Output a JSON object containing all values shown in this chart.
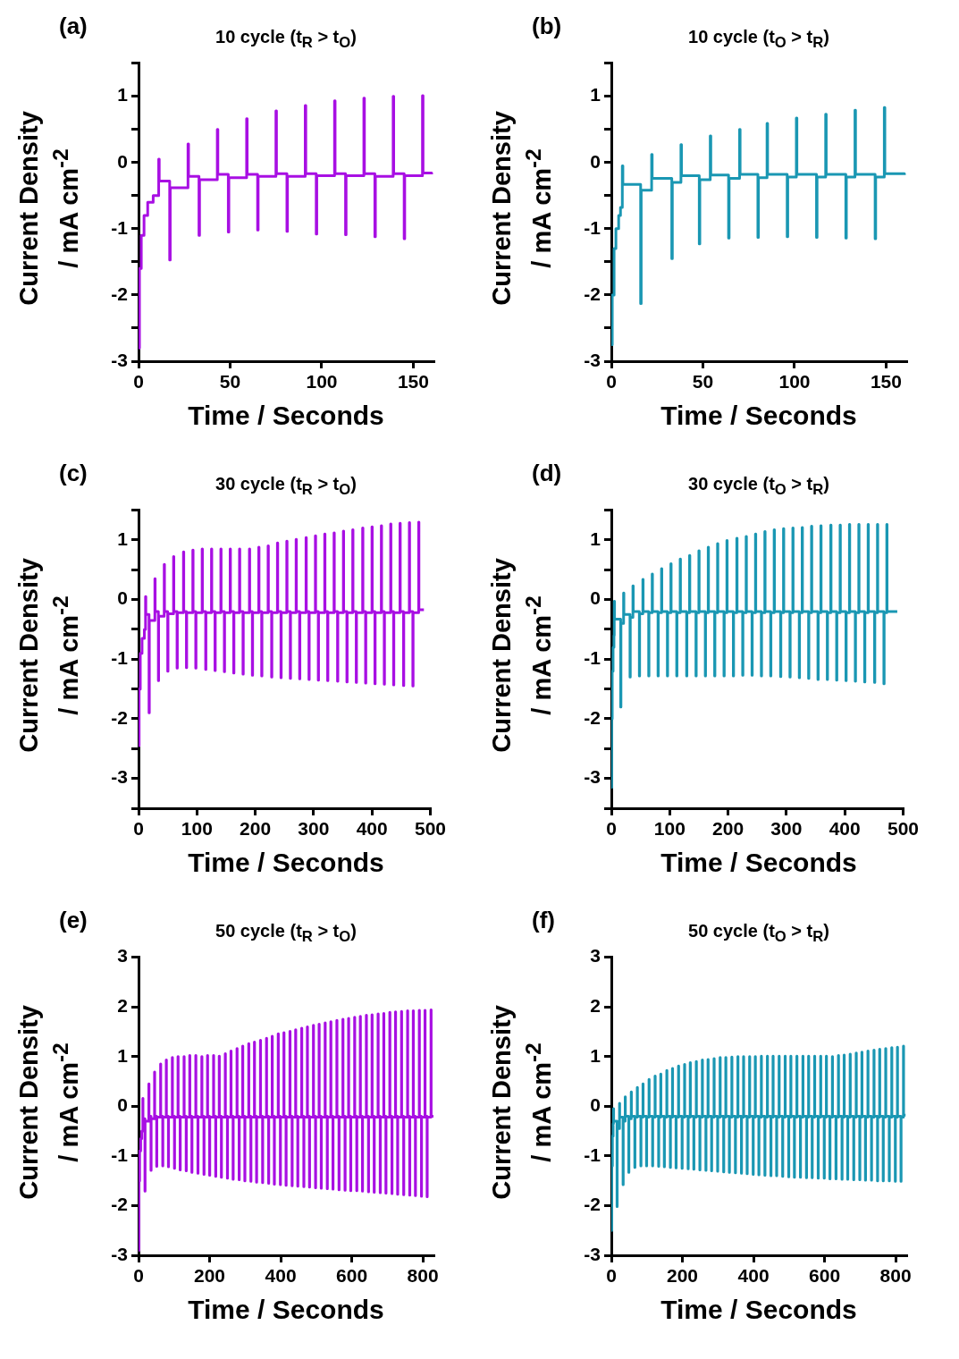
{
  "chart_data": [
    {
      "type": "step",
      "title": "10 cycle (t$_{R}$ > t$_{O}$)",
      "xlabel": "Time / Seconds",
      "ylabel": "Current Density\n/ mA cm$^{-2}$",
      "annotations": [
        "(a)"
      ],
      "color": "#a80fe3",
      "xlim": [
        0,
        161
      ],
      "xticks": [
        0,
        50,
        100,
        150
      ],
      "ylim": [
        -3,
        1.5
      ],
      "yticks": [
        -3,
        {
          "value": -2.5,
          "label": null
        },
        -2,
        {
          "value": -1.5,
          "label": null
        },
        -1,
        {
          "value": -0.5,
          "label": null
        },
        0,
        {
          "value": 0.5,
          "label": null
        },
        1,
        {
          "value": 1.5,
          "label": null
        }
      ],
      "x": [
        0,
        0.5,
        1.5,
        3,
        5,
        8,
        11,
        11.3,
        17,
        17.3,
        27,
        27.3,
        33,
        33.3,
        43,
        43.3,
        49,
        49.3,
        59,
        59.3,
        65,
        65.3,
        75,
        75.3,
        81,
        81.3,
        91,
        91.3,
        97,
        97.3,
        107,
        107.3,
        113,
        113.3,
        123,
        123.3,
        129,
        129.3,
        139,
        139.3,
        145,
        145.3,
        155,
        155.3,
        160
      ],
      "values": [
        -2.8,
        -1.6,
        -1.1,
        -0.8,
        -0.6,
        -0.5,
        0.05,
        -0.28,
        -1.47,
        -0.38,
        0.28,
        -0.21,
        -1.1,
        -0.26,
        0.5,
        -0.18,
        -1.05,
        -0.23,
        0.66,
        -0.18,
        -1.02,
        -0.21,
        0.78,
        -0.17,
        -1.04,
        -0.21,
        0.86,
        -0.17,
        -1.08,
        -0.2,
        0.93,
        -0.17,
        -1.09,
        -0.2,
        0.97,
        -0.17,
        -1.12,
        -0.21,
        1.0,
        -0.17,
        -1.15,
        -0.2,
        1.01,
        -0.16,
        -0.18
      ]
    },
    {
      "type": "step",
      "title": "10 cycle (t$_{O}$ > t$_{R}$)",
      "xlabel": "Time / Seconds",
      "ylabel": "Current Density\n/ mA cm$^{-2}$",
      "annotations": [
        "(b)"
      ],
      "color": "#1a97b3",
      "xlim": [
        0,
        161
      ],
      "xticks": [
        0,
        50,
        100,
        150
      ],
      "ylim": [
        -3,
        1.5
      ],
      "yticks": [
        -3,
        {
          "value": -2.5,
          "label": null
        },
        -2,
        {
          "value": -1.5,
          "label": null
        },
        -1,
        {
          "value": -0.5,
          "label": null
        },
        0,
        {
          "value": 0.5,
          "label": null
        },
        1,
        {
          "value": 1.5,
          "label": null
        }
      ],
      "x": [
        0,
        0.5,
        1.5,
        2.5,
        4,
        5,
        6,
        6.3,
        16,
        16.3,
        22,
        22.3,
        33,
        33.3,
        38,
        38.3,
        48,
        48.3,
        54,
        54.3,
        64,
        64.3,
        70,
        70.3,
        80,
        80.3,
        85,
        85.3,
        96,
        96.3,
        101,
        101.3,
        112,
        112.3,
        117,
        117.3,
        128,
        128.3,
        133,
        133.3,
        144,
        144.3,
        149,
        149.3,
        160
      ],
      "values": [
        -2.75,
        -2.0,
        -1.3,
        -1.0,
        -0.8,
        -0.68,
        -0.05,
        -0.33,
        -2.13,
        -0.42,
        0.12,
        -0.24,
        -1.45,
        -0.3,
        0.27,
        -0.2,
        -1.23,
        -0.26,
        0.4,
        -0.19,
        -1.14,
        -0.24,
        0.5,
        -0.18,
        -1.13,
        -0.23,
        0.59,
        -0.18,
        -1.12,
        -0.22,
        0.67,
        -0.18,
        -1.13,
        -0.22,
        0.73,
        -0.18,
        -1.14,
        -0.22,
        0.79,
        -0.18,
        -1.15,
        -0.22,
        0.83,
        -0.17,
        -0.19
      ]
    },
    {
      "type": "step",
      "title": "30 cycle (t$_{R}$ > t$_{O}$)",
      "xlabel": "Time / Seconds",
      "ylabel": "Current Density\n/ mA cm$^{-2}$",
      "annotations": [
        "(c)"
      ],
      "color": "#a80fe3",
      "xlim": [
        0,
        500
      ],
      "xticks": [
        0,
        100,
        200,
        300,
        400,
        500
      ],
      "ylim": [
        -3.5,
        1.5
      ],
      "yticks": [
        {
          "value": -3.5,
          "label": null
        },
        -3,
        {
          "value": -2.5,
          "label": null
        },
        -2,
        {
          "value": -1.5,
          "label": null
        },
        -1,
        {
          "value": -0.5,
          "label": null
        },
        0,
        {
          "value": 0.5,
          "label": null
        },
        1,
        {
          "value": 1.5,
          "label": null
        }
      ],
      "x": [
        0,
        1,
        3,
        6,
        10,
        12,
        12.5,
        18,
        18.5,
        28,
        28.5,
        34,
        34.5,
        44,
        44.5,
        50,
        50.5,
        60,
        60.5,
        66,
        66.5,
        77,
        77.5,
        82,
        82.5,
        93,
        93.5,
        98,
        98.5,
        109,
        109.5,
        115,
        115.5,
        125,
        125.5,
        131,
        131.5,
        141,
        141.5,
        147,
        147.5,
        157,
        157.5,
        163,
        163.5,
        173,
        173.5,
        179,
        179.5,
        190,
        190.5,
        195,
        195.5,
        206,
        206.5,
        211,
        211.5,
        222,
        222.5,
        228,
        228.5,
        238,
        238.5,
        244,
        244.5,
        254,
        254.5,
        260,
        260.5,
        270,
        270.5,
        276,
        276.5,
        287,
        287.5,
        292,
        292.5,
        303,
        303.5,
        308,
        308.5,
        319,
        319.5,
        324,
        324.5,
        335,
        335.5,
        341,
        341.5,
        351,
        351.5,
        357,
        357.5,
        367,
        367.5,
        373,
        373.5,
        384,
        384.5,
        389,
        389.5,
        400,
        400.5,
        405,
        405.5,
        416,
        416.5,
        421,
        421.5,
        432,
        432.5,
        437,
        437.5,
        448,
        448.5,
        454,
        454.5,
        464,
        464.5,
        470,
        470.5,
        480,
        480.5,
        489
      ],
      "values": [
        -2.45,
        -1.5,
        -0.9,
        -0.65,
        -0.5,
        0.05,
        -0.25,
        -1.9,
        -0.35,
        0.35,
        -0.2,
        -1.36,
        -0.28,
        0.59,
        -0.2,
        -1.2,
        -0.24,
        0.72,
        -0.2,
        -1.15,
        -0.22,
        0.8,
        -0.2,
        -1.14,
        -0.22,
        0.83,
        -0.2,
        -1.15,
        -0.22,
        0.85,
        -0.2,
        -1.17,
        -0.22,
        0.85,
        -0.2,
        -1.19,
        -0.22,
        0.85,
        -0.2,
        -1.21,
        -0.22,
        0.85,
        -0.2,
        -1.23,
        -0.22,
        0.85,
        -0.2,
        -1.25,
        -0.22,
        0.85,
        -0.2,
        -1.27,
        -0.22,
        0.88,
        -0.2,
        -1.28,
        -0.22,
        0.9,
        -0.2,
        -1.3,
        -0.22,
        0.95,
        -0.2,
        -1.31,
        -0.22,
        0.98,
        -0.2,
        -1.32,
        -0.22,
        1.01,
        -0.2,
        -1.33,
        -0.22,
        1.04,
        -0.2,
        -1.34,
        -0.22,
        1.07,
        -0.2,
        -1.35,
        -0.22,
        1.1,
        -0.2,
        -1.36,
        -0.22,
        1.12,
        -0.2,
        -1.37,
        -0.22,
        1.15,
        -0.2,
        -1.38,
        -0.22,
        1.17,
        -0.2,
        -1.39,
        -0.22,
        1.2,
        -0.2,
        -1.4,
        -0.22,
        1.22,
        -0.2,
        -1.41,
        -0.22,
        1.24,
        -0.2,
        -1.42,
        -0.22,
        1.27,
        -0.2,
        -1.43,
        -0.22,
        1.28,
        -0.2,
        -1.44,
        -0.22,
        1.29,
        -0.2,
        -1.45,
        -0.22,
        1.3,
        -0.17,
        -0.17
      ]
    },
    {
      "type": "step",
      "title": "30 cycle (t$_{O}$ > t$_{R}$)",
      "xlabel": "Time / Seconds",
      "ylabel": "Current Density\n/ mA cm$^{-2}$",
      "annotations": [
        "(d)"
      ],
      "color": "#1a97b3",
      "xlim": [
        0,
        500
      ],
      "xticks": [
        0,
        100,
        200,
        300,
        400,
        500
      ],
      "ylim": [
        -3.5,
        1.5
      ],
      "yticks": [
        {
          "value": -3.5,
          "label": null
        },
        -3,
        {
          "value": -2.5,
          "label": null
        },
        -2,
        {
          "value": -1.5,
          "label": null
        },
        -1,
        {
          "value": -0.5,
          "label": null
        },
        0,
        {
          "value": 0.5,
          "label": null
        },
        1,
        {
          "value": 1.5,
          "label": null
        }
      ],
      "x": [
        0,
        0.5,
        1.5,
        3,
        4.5,
        5,
        5.5,
        16,
        16.5,
        21,
        21.5,
        32,
        32.5,
        37,
        37.5,
        48,
        48.5,
        54,
        54.5,
        64,
        64.5,
        70,
        70.5,
        80,
        80.5,
        86,
        86.5,
        96,
        96.5,
        102,
        102.5,
        112,
        112.5,
        118,
        118.5,
        129,
        129.5,
        134,
        134.5,
        145,
        145.5,
        150,
        150.5,
        161,
        161.5,
        166,
        166.5,
        177,
        177.5,
        182,
        182.5,
        193,
        193.5,
        198,
        198.5,
        209,
        209.5,
        215,
        215.5,
        225,
        225.5,
        231,
        231.5,
        241,
        241.5,
        247,
        247.5,
        257,
        257.5,
        263,
        263.5,
        273,
        273.5,
        279,
        279.5,
        290,
        290.5,
        295,
        295.5,
        306,
        306.5,
        311,
        311.5,
        322,
        322.5,
        327,
        327.5,
        338,
        338.5,
        343,
        343.5,
        354,
        354.5,
        359,
        359.5,
        370,
        370.5,
        376,
        376.5,
        386,
        386.5,
        392,
        392.5,
        402,
        402.5,
        408,
        408.5,
        418,
        418.5,
        424,
        424.5,
        434,
        434.5,
        440,
        440.5,
        451,
        451.5,
        456,
        456.5,
        467,
        467.5,
        472,
        472.5,
        490
      ],
      "values": [
        -3.15,
        -2.0,
        -1.2,
        -0.8,
        -0.6,
        -0.03,
        -0.33,
        -1.8,
        -0.4,
        0.11,
        -0.25,
        -1.3,
        -0.3,
        0.23,
        -0.2,
        -1.28,
        -0.24,
        0.34,
        -0.2,
        -1.28,
        -0.22,
        0.43,
        -0.2,
        -1.28,
        -0.22,
        0.52,
        -0.2,
        -1.28,
        -0.22,
        0.6,
        -0.2,
        -1.28,
        -0.22,
        0.68,
        -0.2,
        -1.28,
        -0.22,
        0.74,
        -0.2,
        -1.28,
        -0.22,
        0.82,
        -0.2,
        -1.28,
        -0.22,
        0.88,
        -0.2,
        -1.28,
        -0.22,
        0.94,
        -0.2,
        -1.28,
        -0.22,
        0.99,
        -0.2,
        -1.28,
        -0.22,
        1.03,
        -0.2,
        -1.27,
        -0.22,
        1.06,
        -0.2,
        -1.27,
        -0.22,
        1.1,
        -0.2,
        -1.28,
        -0.22,
        1.14,
        -0.2,
        -1.28,
        -0.22,
        1.17,
        -0.2,
        -1.29,
        -0.22,
        1.19,
        -0.2,
        -1.3,
        -0.22,
        1.2,
        -0.2,
        -1.31,
        -0.22,
        1.21,
        -0.2,
        -1.32,
        -0.22,
        1.23,
        -0.2,
        -1.34,
        -0.22,
        1.24,
        -0.2,
        -1.34,
        -0.22,
        1.25,
        -0.2,
        -1.35,
        -0.22,
        1.25,
        -0.2,
        -1.36,
        -0.22,
        1.26,
        -0.2,
        -1.37,
        -0.22,
        1.26,
        -0.2,
        -1.38,
        -0.22,
        1.26,
        -0.2,
        -1.39,
        -0.22,
        1.26,
        -0.2,
        -1.41,
        -0.22,
        1.26,
        -0.2,
        -0.2
      ]
    },
    {
      "type": "step",
      "title": "50 cycle (t$_{R}$ > t$_{O}$)",
      "xlabel": "Time / Seconds",
      "ylabel": "Current Density\n/ mA cm$^{-2}$",
      "annotations": [
        "(e)"
      ],
      "color": "#a80fe3",
      "xlim": [
        0,
        830
      ],
      "xticks": [
        0,
        200,
        400,
        600,
        800
      ],
      "ylim": [
        -3,
        3
      ],
      "yticks": [
        -3,
        -2,
        -1,
        0,
        1,
        2,
        3
      ],
      "x": [
        0,
        1,
        3,
        6,
        9,
        12,
        12.5,
        18,
        18.5,
        29,
        29.5,
        35,
        35.5,
        45,
        45.5,
        51,
        51.5,
        62,
        62.5,
        68,
        68.5,
        78,
        78.5,
        84,
        84.5,
        95,
        95.5,
        101,
        101.5,
        111,
        111.5,
        117,
        117.5,
        128,
        128.5,
        134,
        134.5,
        144,
        144.5,
        150,
        150.5,
        161,
        161.5,
        167,
        167.5,
        178,
        178.5,
        184,
        184.5,
        194,
        194.5,
        200,
        200.5,
        211,
        211.5,
        217,
        217.5,
        227,
        227.5,
        233,
        233.5,
        244,
        244.5,
        250,
        250.5,
        260,
        260.5,
        266,
        266.5,
        277,
        277.5,
        283,
        283.5,
        293,
        293.5,
        299,
        299.5,
        310,
        310.5,
        316,
        316.5,
        326,
        326.5,
        332,
        332.5,
        343,
        343.5,
        349,
        349.5,
        360,
        360.5,
        366,
        366.5,
        376,
        376.5,
        382,
        382.5,
        393,
        393.5,
        399,
        399.5,
        409,
        409.5,
        415,
        415.5,
        426,
        426.5,
        432,
        432.5,
        442,
        442.5,
        448,
        448.5,
        459,
        459.5,
        465,
        465.5,
        475,
        475.5,
        481,
        481.5,
        492,
        492.5,
        498,
        498.5,
        508,
        508.5,
        514,
        514.5,
        525,
        525.5,
        531,
        531.5,
        541,
        541.5,
        547,
        547.5,
        558,
        558.5,
        564,
        564.5,
        575,
        575.5,
        581,
        581.5,
        591,
        591.5,
        597,
        597.5,
        608,
        608.5,
        614,
        614.5,
        624,
        624.5,
        630,
        630.5,
        641,
        641.5,
        647,
        647.5,
        657,
        657.5,
        663,
        663.5,
        674,
        674.5,
        680,
        680.5,
        690,
        690.5,
        696,
        696.5,
        707,
        707.5,
        713,
        713.5,
        723,
        723.5,
        729,
        729.5,
        740,
        740.5,
        746,
        746.5,
        757,
        757.5,
        763,
        763.5,
        773,
        773.5,
        779,
        779.5,
        790,
        790.5,
        796,
        796.5,
        806,
        806.5,
        812,
        812.5,
        823,
        823.5,
        829
      ],
      "values": [
        -2.9,
        -1.5,
        -0.9,
        -0.65,
        -0.5,
        0.16,
        -0.25,
        -1.71,
        -0.3,
        0.45,
        -0.2,
        -1.29,
        -0.25,
        0.69,
        -0.2,
        -1.21,
        -0.22,
        0.85,
        -0.2,
        -1.2,
        -0.22,
        0.93,
        -0.2,
        -1.22,
        -0.22,
        0.98,
        -0.2,
        -1.25,
        -0.22,
        1.0,
        -0.2,
        -1.28,
        -0.22,
        1.0,
        -0.2,
        -1.3,
        -0.22,
        1.02,
        -0.2,
        -1.33,
        -0.22,
        1.02,
        -0.2,
        -1.35,
        -0.22,
        1.0,
        -0.2,
        -1.37,
        -0.22,
        1.02,
        -0.2,
        -1.39,
        -0.22,
        1.02,
        -0.2,
        -1.41,
        -0.22,
        1.01,
        -0.2,
        -1.43,
        -0.22,
        1.06,
        -0.2,
        -1.45,
        -0.22,
        1.11,
        -0.2,
        -1.47,
        -0.22,
        1.16,
        -0.2,
        -1.48,
        -0.22,
        1.21,
        -0.2,
        -1.5,
        -0.22,
        1.26,
        -0.2,
        -1.51,
        -0.22,
        1.29,
        -0.2,
        -1.53,
        -0.22,
        1.33,
        -0.2,
        -1.54,
        -0.22,
        1.37,
        -0.2,
        -1.55,
        -0.22,
        1.41,
        -0.2,
        -1.57,
        -0.22,
        1.46,
        -0.2,
        -1.58,
        -0.22,
        1.48,
        -0.2,
        -1.59,
        -0.22,
        1.51,
        -0.2,
        -1.6,
        -0.22,
        1.54,
        -0.2,
        -1.61,
        -0.22,
        1.57,
        -0.2,
        -1.62,
        -0.22,
        1.6,
        -0.2,
        -1.63,
        -0.22,
        1.63,
        -0.2,
        -1.64,
        -0.22,
        1.65,
        -0.2,
        -1.65,
        -0.22,
        1.68,
        -0.2,
        -1.66,
        -0.22,
        1.7,
        -0.2,
        -1.67,
        -0.22,
        1.73,
        -0.2,
        -1.68,
        -0.22,
        1.75,
        -0.2,
        -1.69,
        -0.22,
        1.77,
        -0.2,
        -1.7,
        -0.22,
        1.79,
        -0.2,
        -1.7,
        -0.22,
        1.81,
        -0.2,
        -1.71,
        -0.22,
        1.83,
        -0.2,
        -1.72,
        -0.22,
        1.84,
        -0.2,
        -1.73,
        -0.22,
        1.86,
        -0.2,
        -1.74,
        -0.22,
        1.87,
        -0.2,
        -1.75,
        -0.22,
        1.89,
        -0.2,
        -1.76,
        -0.22,
        1.9,
        -0.2,
        -1.77,
        -0.22,
        1.91,
        -0.2,
        -1.78,
        -0.22,
        1.92,
        -0.2,
        -1.79,
        -0.22,
        1.92,
        -0.2,
        -1.8,
        -0.22,
        1.93,
        -0.2,
        -1.81,
        -0.22,
        1.93,
        -0.2,
        -1.82,
        -0.22,
        1.94,
        -0.2,
        -0.18
      ]
    },
    {
      "type": "step",
      "title": "50 cycle (t$_{O}$ > t$_{R}$)",
      "xlabel": "Time / Seconds",
      "ylabel": "Current Density\n/ mA cm$^{-2}$",
      "annotations": [
        "(f)"
      ],
      "color": "#1a97b3",
      "xlim": [
        0,
        830
      ],
      "xticks": [
        0,
        200,
        400,
        600,
        800
      ],
      "ylim": [
        -3,
        3
      ],
      "yticks": [
        -3,
        -2,
        -1,
        0,
        1,
        2,
        3
      ],
      "x": [
        0,
        1,
        3,
        5,
        6,
        6.5,
        16,
        16.5,
        23,
        23.5,
        33,
        33.5,
        39,
        39.5,
        49,
        49.5,
        56,
        56.5,
        66,
        66.5,
        73,
        73.5,
        83,
        83.5,
        89,
        89.5,
        99,
        99.5,
        106,
        106.5,
        116,
        116.5,
        123,
        123.5,
        133,
        133.5,
        139,
        139.5,
        149,
        149.5,
        156,
        156.5,
        166,
        166.5,
        172,
        172.5,
        182,
        182.5,
        189,
        189.5,
        199,
        199.5,
        206,
        206.5,
        216,
        216.5,
        222,
        222.5,
        232,
        232.5,
        239,
        239.5,
        249,
        249.5,
        256,
        256.5,
        266,
        266.5,
        272,
        272.5,
        282,
        282.5,
        289,
        289.5,
        299,
        299.5,
        306,
        306.5,
        316,
        316.5,
        322,
        322.5,
        332,
        332.5,
        339,
        339.5,
        349,
        349.5,
        356,
        356.5,
        366,
        366.5,
        372,
        372.5,
        382,
        382.5,
        389,
        389.5,
        399,
        399.5,
        405,
        405.5,
        415,
        415.5,
        422,
        422.5,
        432,
        432.5,
        439,
        439.5,
        449,
        449.5,
        455,
        455.5,
        465,
        465.5,
        472,
        472.5,
        482,
        482.5,
        489,
        489.5,
        499,
        499.5,
        505,
        505.5,
        515,
        515.5,
        522,
        522.5,
        532,
        532.5,
        539,
        539.5,
        549,
        549.5,
        555,
        555.5,
        565,
        565.5,
        572,
        572.5,
        582,
        582.5,
        589,
        589.5,
        599,
        599.5,
        605,
        605.5,
        615,
        615.5,
        622,
        622.5,
        632,
        632.5,
        639,
        639.5,
        649,
        649.5,
        655,
        655.5,
        665,
        665.5,
        672,
        672.5,
        682,
        682.5,
        689,
        689.5,
        699,
        699.5,
        705,
        705.5,
        715,
        715.5,
        722,
        722.5,
        732,
        732.5,
        739,
        739.5,
        749,
        749.5,
        755,
        755.5,
        765,
        765.5,
        772,
        772.5,
        782,
        782.5,
        789,
        789.5,
        799,
        799.5,
        805,
        805.5,
        815,
        815.5,
        822,
        822.5,
        828
      ],
      "values": [
        -2.5,
        -1.2,
        -0.6,
        -0.35,
        -0.05,
        -0.3,
        -2.02,
        -0.45,
        0.06,
        -0.22,
        -1.58,
        -0.3,
        0.19,
        -0.2,
        -1.33,
        -0.25,
        0.29,
        -0.2,
        -1.23,
        -0.22,
        0.38,
        -0.2,
        -1.2,
        -0.22,
        0.45,
        -0.2,
        -1.2,
        -0.22,
        0.54,
        -0.2,
        -1.2,
        -0.22,
        0.61,
        -0.2,
        -1.21,
        -0.22,
        0.65,
        -0.2,
        -1.22,
        -0.22,
        0.72,
        -0.2,
        -1.23,
        -0.22,
        0.76,
        -0.2,
        -1.24,
        -0.22,
        0.81,
        -0.2,
        -1.25,
        -0.22,
        0.84,
        -0.2,
        -1.26,
        -0.22,
        0.88,
        -0.2,
        -1.27,
        -0.22,
        0.9,
        -0.2,
        -1.28,
        -0.22,
        0.93,
        -0.2,
        -1.29,
        -0.22,
        0.94,
        -0.2,
        -1.3,
        -0.22,
        0.96,
        -0.2,
        -1.31,
        -0.22,
        0.98,
        -0.2,
        -1.32,
        -0.22,
        0.98,
        -0.2,
        -1.33,
        -0.22,
        0.99,
        -0.2,
        -1.34,
        -0.22,
        1.0,
        -0.2,
        -1.35,
        -0.22,
        1.0,
        -0.2,
        -1.36,
        -0.22,
        1.0,
        -0.2,
        -1.37,
        -0.22,
        1.0,
        -0.2,
        -1.38,
        -0.22,
        1.01,
        -0.2,
        -1.39,
        -0.22,
        1.01,
        -0.2,
        -1.4,
        -0.22,
        1.01,
        -0.2,
        -1.4,
        -0.22,
        1.01,
        -0.2,
        -1.41,
        -0.22,
        1.01,
        -0.2,
        -1.42,
        -0.22,
        1.01,
        -0.2,
        -1.43,
        -0.22,
        1.01,
        -0.2,
        -1.43,
        -0.22,
        1.01,
        -0.2,
        -1.44,
        -0.22,
        1.01,
        -0.2,
        -1.44,
        -0.22,
        1.01,
        -0.2,
        -1.45,
        -0.22,
        1.01,
        -0.2,
        -1.45,
        -0.22,
        1.01,
        -0.2,
        -1.46,
        -0.22,
        1.0,
        -0.2,
        -1.46,
        -0.22,
        1.02,
        -0.2,
        -1.47,
        -0.22,
        1.03,
        -0.2,
        -1.47,
        -0.22,
        1.05,
        -0.2,
        -1.48,
        -0.22,
        1.07,
        -0.2,
        -1.48,
        -0.22,
        1.09,
        -0.2,
        -1.49,
        -0.22,
        1.11,
        -0.2,
        -1.49,
        -0.22,
        1.13,
        -0.2,
        -1.5,
        -0.22,
        1.15,
        -0.2,
        -1.5,
        -0.22,
        1.16,
        -0.2,
        -1.5,
        -0.22,
        1.18,
        -0.2,
        -1.51,
        -0.22,
        1.19,
        -0.2,
        -1.51,
        -0.22,
        1.21,
        -0.18,
        -0.18
      ]
    }
  ]
}
